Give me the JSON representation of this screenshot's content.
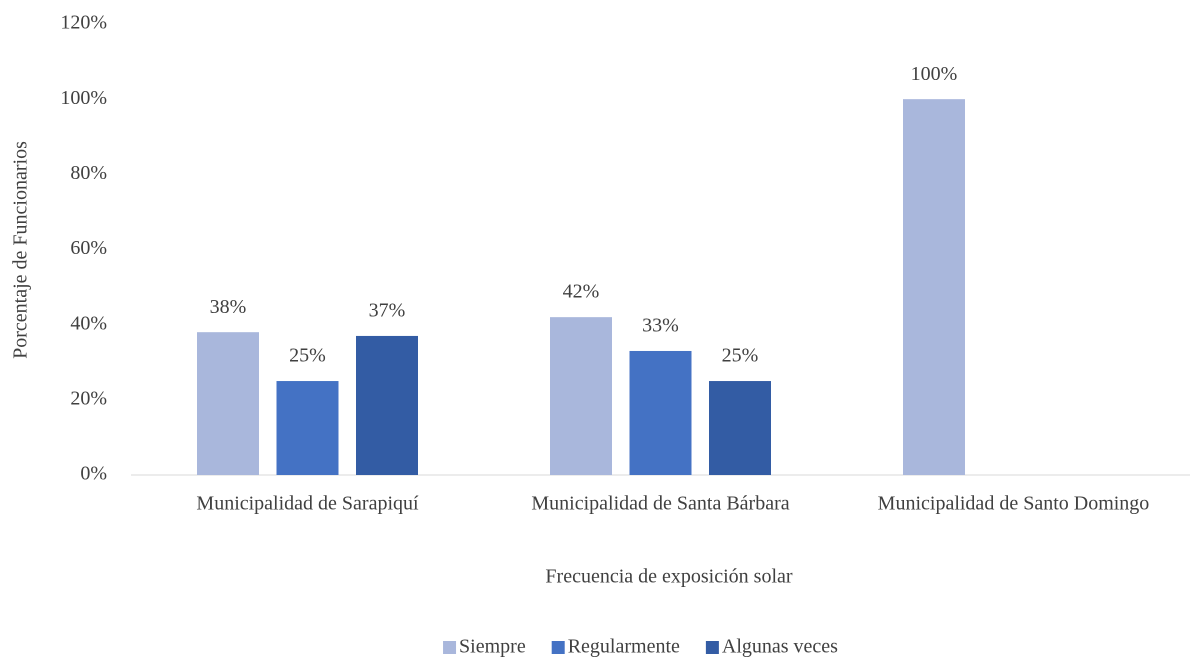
{
  "chart_data": {
    "type": "bar",
    "categories": [
      "Municipalidad de Sarapiquí",
      "Municipalidad de Santa Bárbara",
      "Municipalidad de Santo Domingo"
    ],
    "series": [
      {
        "name": "Siempre",
        "color": "#a9b7dc",
        "values": [
          38,
          42,
          100
        ],
        "value_labels": [
          "38%",
          "42%",
          "100%"
        ]
      },
      {
        "name": "Regularmente",
        "color": "#4472c4",
        "values": [
          25,
          33,
          null
        ],
        "value_labels": [
          "25%",
          "33%",
          null
        ]
      },
      {
        "name": "Algunas veces",
        "color": "#335ca4",
        "values": [
          37,
          25,
          null
        ],
        "value_labels": [
          "37%",
          "25%",
          null
        ]
      }
    ],
    "xlabel": "Frecuencia de exposición solar",
    "ylabel": "Porcentaje de Funcionarios",
    "ylim": [
      0,
      120
    ],
    "yticks": [
      {
        "value": 0,
        "label": "0%"
      },
      {
        "value": 20,
        "label": "20%"
      },
      {
        "value": 40,
        "label": "40%"
      },
      {
        "value": 60,
        "label": "60%"
      },
      {
        "value": 80,
        "label": "80%"
      },
      {
        "value": 100,
        "label": "100%"
      },
      {
        "value": 120,
        "label": "120%"
      }
    ],
    "grid": false,
    "legend": "bottom"
  }
}
